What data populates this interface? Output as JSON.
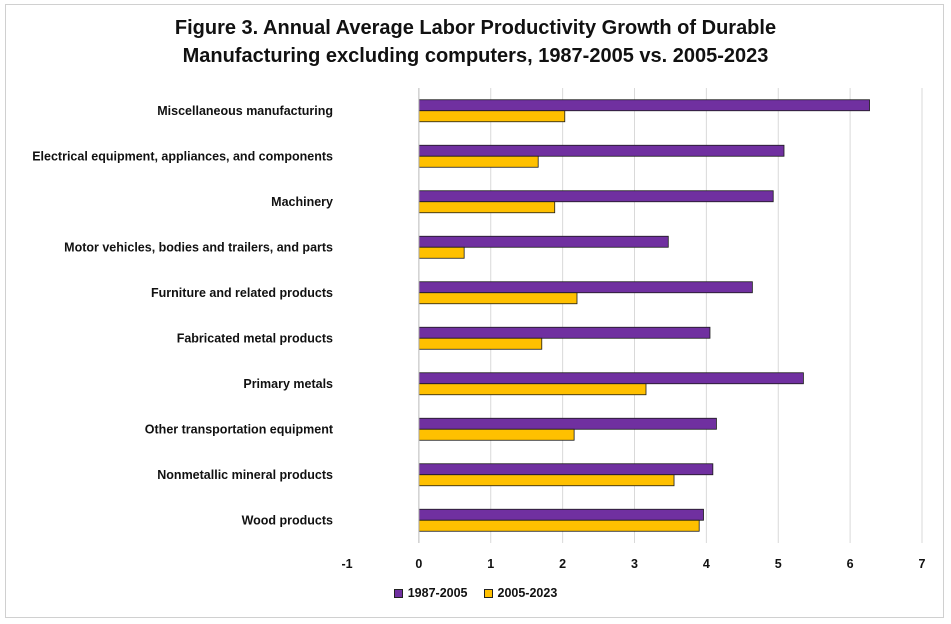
{
  "chart_data": {
    "type": "bar",
    "orientation": "horizontal",
    "title_lines": [
      "Figure 3. Annual Average Labor Productivity Growth of Durable",
      "Manufacturing excluding computers, 1987-2005 vs. 2005-2023"
    ],
    "xlabel": "",
    "ylabel": "",
    "xlim": [
      -1,
      7
    ],
    "xticks": [
      "-1",
      "0",
      "1",
      "2",
      "3",
      "4",
      "5",
      "6",
      "7"
    ],
    "grid": true,
    "legend_position": "bottom",
    "categories": [
      "Miscellaneous manufacturing",
      "Electrical equipment, appliances, and components",
      "Machinery",
      "Motor vehicles, bodies and trailers, and parts",
      "Furniture and related products",
      "Fabricated metal products",
      "Primary metals",
      "Other transportation equipment",
      "Nonmetallic mineral products",
      "Wood products"
    ],
    "series": [
      {
        "name": "1987-2005",
        "color": "#7030a0",
        "values": [
          6.27,
          5.08,
          4.93,
          3.47,
          4.64,
          4.05,
          5.35,
          4.14,
          4.09,
          3.96
        ]
      },
      {
        "name": "2005-2023",
        "color": "#ffc000",
        "values": [
          2.03,
          1.66,
          1.89,
          0.63,
          2.2,
          1.71,
          3.16,
          2.16,
          3.55,
          3.9
        ]
      }
    ]
  }
}
